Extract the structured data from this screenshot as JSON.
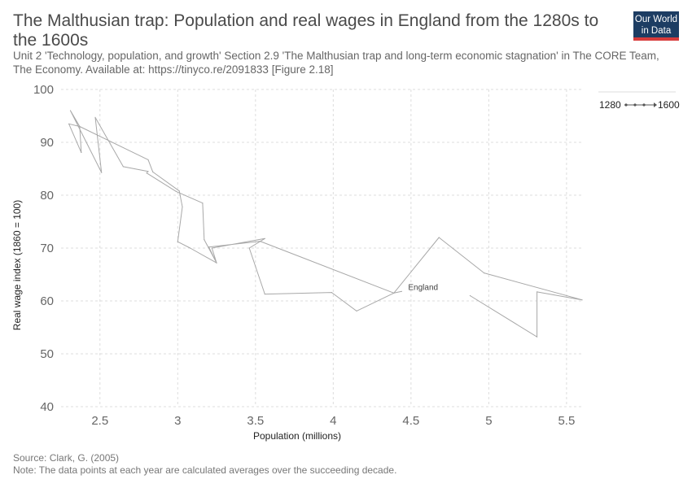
{
  "header": {
    "title": "The Malthusian trap: Population and real wages in England from the 1280s to the 1600s",
    "subtitle": "Unit 2 'Technology, population, and growth' Section 2.9 'The Malthusian trap and long-term economic stagnation' in The CORE Team, The Economy. Available at: https://tinyco.re/2091833 [Figure 2.18]",
    "logo_line1": "Our World",
    "logo_line2": "in Data"
  },
  "footer": {
    "source": "Source: Clark, G. (2005)",
    "note": "Note: The data points at each year are calculated averages over the succeeding decade."
  },
  "colors": {
    "line": "#a8a8a8",
    "grid": "#dddddd",
    "logo_bg": "#1d3d63",
    "logo_accent": "#d73b3b"
  },
  "chart_data": {
    "type": "line",
    "title": "The Malthusian trap: Population and real wages in England from the 1280s to the 1600s",
    "xlabel": "Population (millions)",
    "ylabel": "Real wage index (1860 = 100)",
    "xlim": [
      2.25,
      5.6
    ],
    "ylim": [
      40,
      100
    ],
    "x_ticks": [
      2.5,
      3,
      3.5,
      4,
      4.5,
      5,
      5.5
    ],
    "x_tick_labels": [
      "2.5",
      "3",
      "3.5",
      "4",
      "4.5",
      "5",
      "5.5"
    ],
    "y_ticks": [
      40,
      50,
      60,
      70,
      80,
      90,
      100
    ],
    "y_tick_labels": [
      "40",
      "50",
      "60",
      "70",
      "80",
      "90",
      "100"
    ],
    "grid": true,
    "legend": {
      "placement": "top-right",
      "start_label": "1280",
      "end_label": "1600"
    },
    "series": [
      {
        "name": "England",
        "points": [
          [
            4.88,
            61.0
          ],
          [
            5.31,
            53.2
          ],
          [
            5.31,
            61.7
          ],
          [
            5.6,
            60.2
          ],
          [
            4.97,
            65.3
          ],
          [
            4.68,
            72.0
          ],
          [
            4.39,
            61.5
          ],
          [
            4.15,
            58.1
          ],
          [
            3.99,
            61.6
          ],
          [
            3.56,
            61.3
          ],
          [
            3.46,
            70.0
          ],
          [
            3.56,
            71.8
          ],
          [
            3.22,
            70.0
          ],
          [
            3.25,
            67.2
          ],
          [
            3.17,
            71.6
          ],
          [
            3.16,
            78.5
          ],
          [
            2.99,
            80.7
          ],
          [
            2.8,
            84.2
          ],
          [
            2.81,
            84.5
          ],
          [
            2.65,
            85.4
          ],
          [
            2.47,
            94.7
          ],
          [
            2.51,
            84.3
          ],
          [
            2.31,
            96.0
          ],
          [
            2.37,
            93.0
          ],
          [
            2.38,
            88.1
          ],
          [
            2.3,
            93.5
          ],
          [
            2.37,
            93.0
          ],
          [
            2.38,
            88.1
          ],
          [
            2.37,
            93.0
          ],
          [
            2.81,
            86.7
          ],
          [
            2.84,
            84.4
          ],
          [
            3.01,
            80.8
          ],
          [
            3.03,
            77.8
          ],
          [
            3.0,
            71.2
          ],
          [
            3.08,
            70.0
          ],
          [
            3.25,
            67.2
          ],
          [
            3.2,
            70.2
          ],
          [
            3.53,
            71.3
          ],
          [
            4.39,
            61.5
          ],
          [
            4.44,
            61.8
          ]
        ]
      }
    ]
  }
}
